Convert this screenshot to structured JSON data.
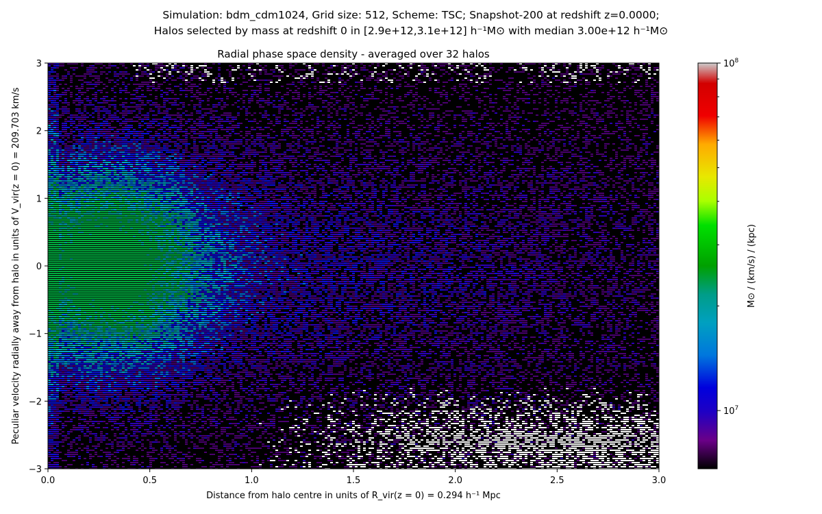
{
  "header": {
    "suptitle_line1": "Simulation: bdm_cdm1024, Grid size: 512, Scheme: TSC;     Snapshot-200 at redshift z=0.0000;",
    "suptitle_line2": "Halos selected by mass at redshift 0 in [2.9e+12,3.1e+12] h⁻¹M⊙ with median 3.00e+12 h⁻¹M⊙"
  },
  "chart_data": {
    "type": "heatmap",
    "title": "Radial phase space density - averaged over 32 halos",
    "xlabel": "Distance from halo centre in units of  R_vir(z = 0) = 0.294 h⁻¹ Mpc",
    "ylabel": "Peculiar velocity radially away from halo in units of  V_vir(z = 0) = 209.703 km/s",
    "xlim": [
      0.0,
      3.0
    ],
    "ylim": [
      -3,
      3
    ],
    "x_ticks": [
      "0.0",
      "0.5",
      "1.0",
      "1.5",
      "2.0",
      "2.5",
      "3.0"
    ],
    "y_ticks": [
      "3",
      "2",
      "1",
      "0",
      "−1",
      "−2",
      "−3"
    ],
    "colorbar": {
      "label": "M⊙ / (km/s) / (kpc)",
      "scale": "log",
      "range": [
        6800000.0,
        100000000.0
      ],
      "tick_labels": [
        "10^8",
        "10^7"
      ],
      "colormap": "nipy_spectral"
    },
    "grid": false,
    "legend": "none",
    "density_description": {
      "peak_region": {
        "x": [
          0.05,
          0.7
        ],
        "y": [
          -1.2,
          1.4
        ],
        "level": "green-cyan"
      },
      "low_region": {
        "x": [
          1.0,
          3.0
        ],
        "y": [
          -3,
          -2
        ],
        "level": "below colour range (white)"
      }
    }
  }
}
